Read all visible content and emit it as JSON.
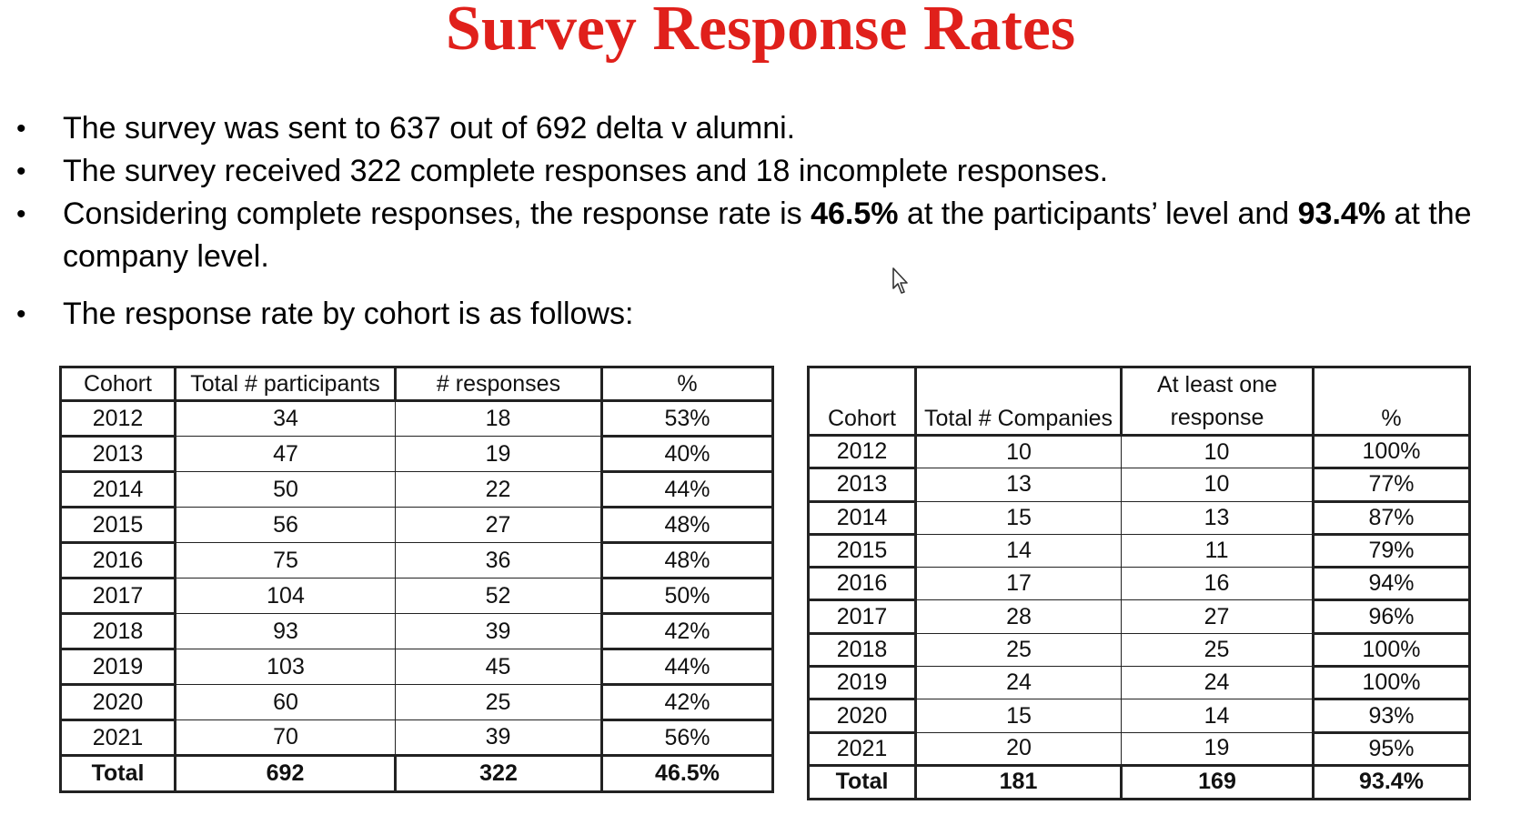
{
  "title": "Survey Response Rates",
  "bullets": {
    "b1": "The survey was sent to 637 out of 692 delta v alumni.",
    "b2": "The survey received 322 complete responses and 18 incomplete responses.",
    "b3_pre": "Considering complete responses, the response rate is ",
    "b3_bold1": "46.5%",
    "b3_mid": " at the participants’ level and ",
    "b3_bold2": "93.4%",
    "b3_post": " at the company level.",
    "b4": "The response rate by cohort is as follows:"
  },
  "participants_table": {
    "headers": [
      "Cohort",
      "Total # participants",
      "# responses",
      "%"
    ],
    "rows": [
      [
        "2012",
        "34",
        "18",
        "53%"
      ],
      [
        "2013",
        "47",
        "19",
        "40%"
      ],
      [
        "2014",
        "50",
        "22",
        "44%"
      ],
      [
        "2015",
        "56",
        "27",
        "48%"
      ],
      [
        "2016",
        "75",
        "36",
        "48%"
      ],
      [
        "2017",
        "104",
        "52",
        "50%"
      ],
      [
        "2018",
        "93",
        "39",
        "42%"
      ],
      [
        "2019",
        "103",
        "45",
        "44%"
      ],
      [
        "2020",
        "60",
        "25",
        "42%"
      ],
      [
        "2021",
        "70",
        "39",
        "56%"
      ]
    ],
    "total": [
      "Total",
      "692",
      "322",
      "46.5%"
    ]
  },
  "companies_table": {
    "headers": [
      "Cohort",
      "Total # Companies",
      "At least one",
      "response",
      "%"
    ],
    "rows": [
      [
        "2012",
        "10",
        "10",
        "100%"
      ],
      [
        "2013",
        "13",
        "10",
        "77%"
      ],
      [
        "2014",
        "15",
        "13",
        "87%"
      ],
      [
        "2015",
        "14",
        "11",
        "79%"
      ],
      [
        "2016",
        "17",
        "16",
        "94%"
      ],
      [
        "2017",
        "28",
        "27",
        "96%"
      ],
      [
        "2018",
        "25",
        "25",
        "100%"
      ],
      [
        "2019",
        "24",
        "24",
        "100%"
      ],
      [
        "2020",
        "15",
        "14",
        "93%"
      ],
      [
        "2021",
        "20",
        "19",
        "95%"
      ]
    ],
    "total": [
      "Total",
      "181",
      "169",
      "93.4%"
    ]
  }
}
